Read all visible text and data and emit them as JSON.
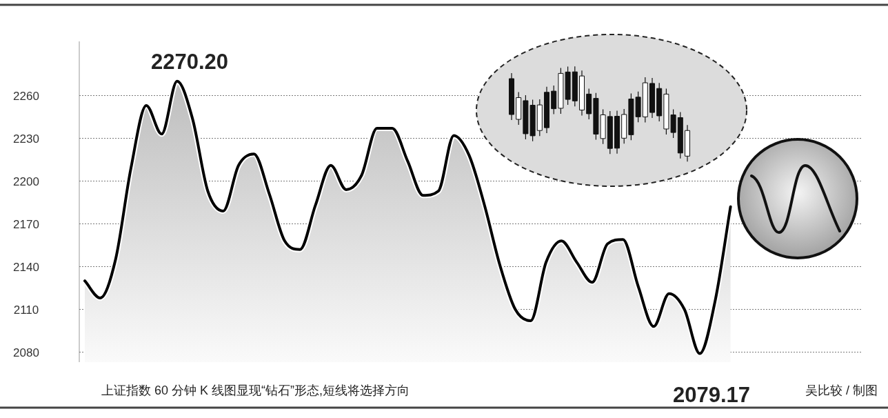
{
  "chart_data": {
    "type": "area",
    "categories": [
      null,
      null,
      null,
      null,
      null,
      null,
      null,
      null,
      null,
      null,
      null,
      null,
      null,
      null,
      null,
      null,
      null,
      null,
      null,
      null,
      null,
      null,
      null,
      null,
      null,
      null,
      null,
      null,
      null,
      null,
      null,
      null,
      null,
      null,
      null,
      null,
      null,
      null,
      null,
      null,
      null,
      null,
      null
    ],
    "series": [
      {
        "color": "#000000",
        "values": [
          2130,
          2118,
          2145,
          2209,
          2253,
          2233,
          2270,
          2244,
          2193,
          2179,
          2211,
          2219,
          2191,
          2158,
          2152,
          2183,
          2211,
          2194,
          2204,
          2237,
          2237,
          2214,
          2190,
          2193,
          2232,
          2218,
          2183,
          2141,
          2110,
          2102,
          2143,
          2158,
          2143,
          2129,
          2156,
          2159,
          2126,
          2098,
          2121,
          2110,
          2079,
          2116,
          2182
        ]
      }
    ],
    "ylim": [
      2073,
      2298
    ],
    "yticks": [
      2080,
      2110,
      2140,
      2170,
      2200,
      2230,
      2260
    ],
    "grid": "y",
    "tick_labels": "y",
    "annotations": [
      "2270.20",
      "2079.17",
      "上证指数 60 分钟 K 线图显现“钻石”形态,短线将选择方向",
      "吴比较 / 制图"
    ]
  }
}
